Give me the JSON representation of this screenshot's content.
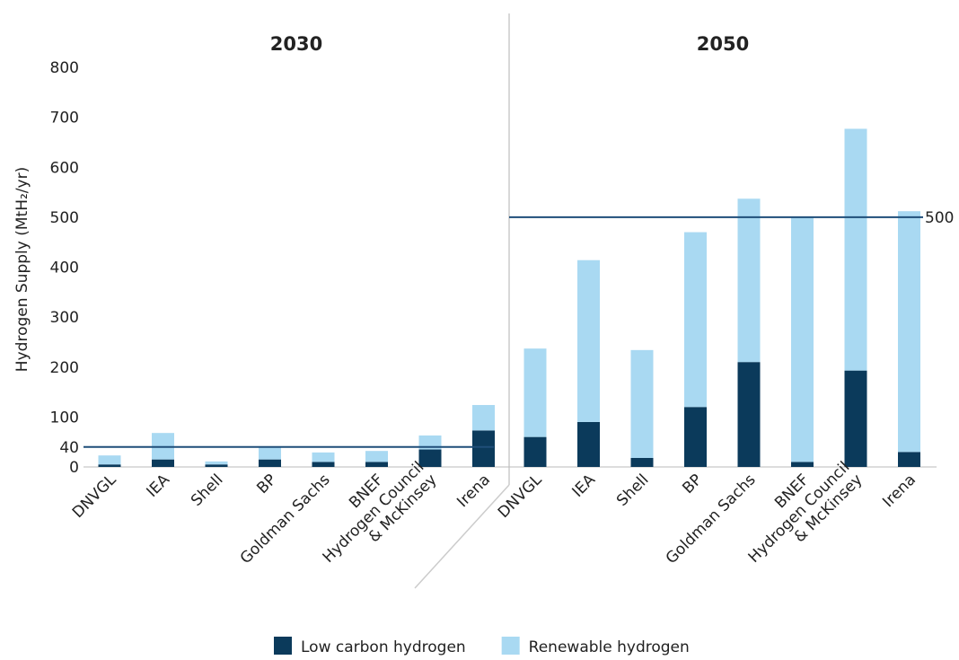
{
  "chart_data": {
    "type": "bar",
    "stacked": true,
    "y_label": "Hydrogen Supply (MtH₂/yr)",
    "ylim": [
      0,
      800
    ],
    "yticks": [
      0,
      40,
      100,
      200,
      300,
      400,
      500,
      600,
      700,
      800
    ],
    "legend": "bottom",
    "series": [
      {
        "name": "Low carbon hydrogen",
        "color": "#0b3a5b"
      },
      {
        "name": "Renewable hydrogen",
        "color": "#a9d9f2"
      }
    ],
    "reference_color": "#1f4e79",
    "panels": [
      {
        "title": "2030",
        "categories": [
          "DNVGL",
          "IEA",
          "Shell",
          "BP",
          "Goldman Sachs",
          "BNEF",
          "Hydrogen Council\n& McKinsey",
          "Irena"
        ],
        "values": [
          [
            5,
            15,
            5,
            15,
            10,
            10,
            35,
            73
          ],
          [
            18,
            53,
            6,
            26,
            19,
            22,
            28,
            51
          ]
        ],
        "reference": 40
      },
      {
        "title": "2050",
        "categories": [
          "DNVGL",
          "IEA",
          "Shell",
          "BP",
          "Goldman Sachs",
          "BNEF",
          "Hydrogen Council\n& McKinsey",
          "Irena"
        ],
        "values": [
          [
            60,
            90,
            18,
            120,
            210,
            10,
            193,
            30
          ],
          [
            177,
            324,
            216,
            350,
            327,
            490,
            484,
            482
          ]
        ],
        "reference": 500,
        "reference_label": true
      }
    ]
  }
}
